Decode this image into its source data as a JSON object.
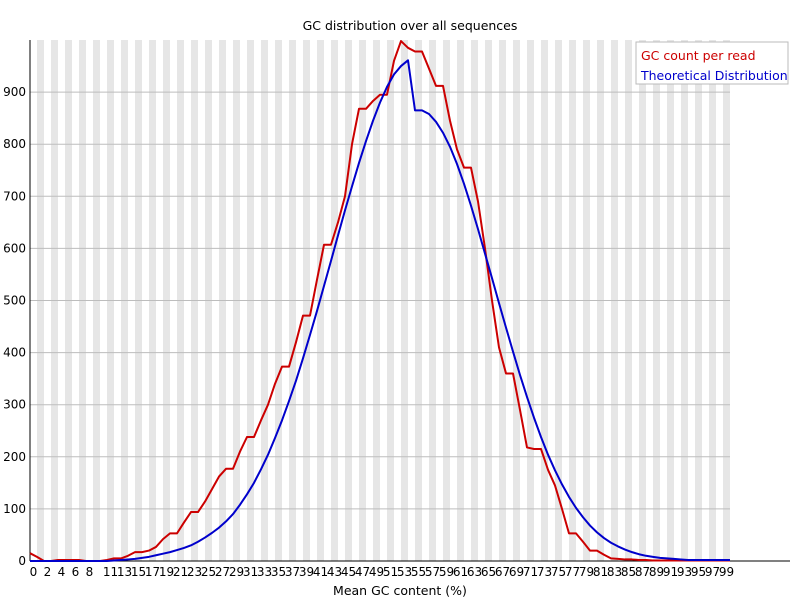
{
  "chart_data": {
    "type": "line",
    "title": "GC distribution over all sequences",
    "xlabel": "Mean GC content (%)",
    "ylabel": "",
    "xlim": [
      0,
      100
    ],
    "ylim": [
      0,
      1000
    ],
    "x_ticks": [
      0,
      2,
      4,
      6,
      8,
      11,
      13,
      15,
      17,
      19,
      21,
      23,
      25,
      27,
      29,
      31,
      33,
      35,
      37,
      39,
      41,
      43,
      45,
      47,
      49,
      51,
      53,
      55,
      57,
      59,
      61,
      63,
      65,
      67,
      69,
      71,
      73,
      75,
      77,
      79,
      81,
      83,
      85,
      87,
      89,
      91,
      93,
      95,
      97,
      99
    ],
    "y_ticks": [
      0,
      100,
      200,
      300,
      400,
      500,
      600,
      700,
      800,
      900
    ],
    "grid": {
      "vertical_bands": true,
      "horizontal_lines": true
    },
    "legend": {
      "position": "top-right"
    },
    "x": [
      0,
      1,
      2,
      3,
      4,
      5,
      6,
      7,
      8,
      9,
      10,
      11,
      12,
      13,
      14,
      15,
      16,
      17,
      18,
      19,
      20,
      21,
      22,
      23,
      24,
      25,
      26,
      27,
      28,
      29,
      30,
      31,
      32,
      33,
      34,
      35,
      36,
      37,
      38,
      39,
      40,
      41,
      42,
      43,
      44,
      45,
      46,
      47,
      48,
      49,
      50,
      51,
      52,
      53,
      54,
      55,
      56,
      57,
      58,
      59,
      60,
      61,
      62,
      63,
      64,
      65,
      66,
      67,
      68,
      69,
      70,
      71,
      72,
      73,
      74,
      75,
      76,
      77,
      78,
      79,
      80,
      81,
      82,
      83,
      84,
      85,
      86,
      87,
      88,
      89,
      90,
      91,
      92,
      93,
      94,
      95,
      96,
      97,
      98,
      99,
      100
    ],
    "series": [
      {
        "name": "GC count per read",
        "color": "#cc0000",
        "values": [
          15,
          8,
          0,
          0,
          2,
          2,
          2,
          2,
          0,
          0,
          0,
          2,
          5,
          5,
          10,
          17,
          17,
          20,
          27,
          42,
          53,
          53,
          74,
          94,
          94,
          114,
          138,
          162,
          177,
          177,
          210,
          238,
          238,
          270,
          300,
          340,
          373,
          373,
          420,
          471,
          471,
          540,
          607,
          607,
          650,
          700,
          800,
          868,
          868,
          883,
          895,
          895,
          960,
          998,
          985,
          978,
          978,
          945,
          912,
          912,
          845,
          790,
          755,
          755,
          690,
          600,
          500,
          410,
          360,
          360,
          290,
          218,
          215,
          215,
          175,
          145,
          100,
          53,
          53,
          37,
          20,
          20,
          12,
          5,
          4,
          3,
          3,
          2,
          2,
          1,
          1,
          1,
          1,
          1,
          1,
          1,
          1,
          1,
          1,
          1,
          1
        ]
      },
      {
        "name": "Theoretical Distribution",
        "color": "#0000cc",
        "values": [
          0,
          0,
          0,
          0,
          0,
          0,
          0,
          0,
          0,
          0,
          0,
          0,
          1,
          2,
          3,
          4,
          6,
          8,
          11,
          14,
          17,
          21,
          25,
          30,
          37,
          45,
          54,
          64,
          76,
          90,
          108,
          128,
          150,
          176,
          204,
          236,
          270,
          307,
          346,
          389,
          434,
          480,
          528,
          576,
          625,
          673,
          719,
          764,
          806,
          845,
          880,
          910,
          934,
          950,
          961,
          865,
          865,
          858,
          843,
          822,
          795,
          762,
          724,
          682,
          637,
          590,
          543,
          495,
          448,
          402,
          357,
          315,
          275,
          238,
          204,
          174,
          147,
          123,
          102,
          84,
          68,
          55,
          44,
          35,
          28,
          22,
          17,
          13,
          10,
          8,
          6,
          5,
          4,
          3,
          2,
          2,
          2,
          2,
          2,
          2,
          2
        ]
      }
    ]
  }
}
